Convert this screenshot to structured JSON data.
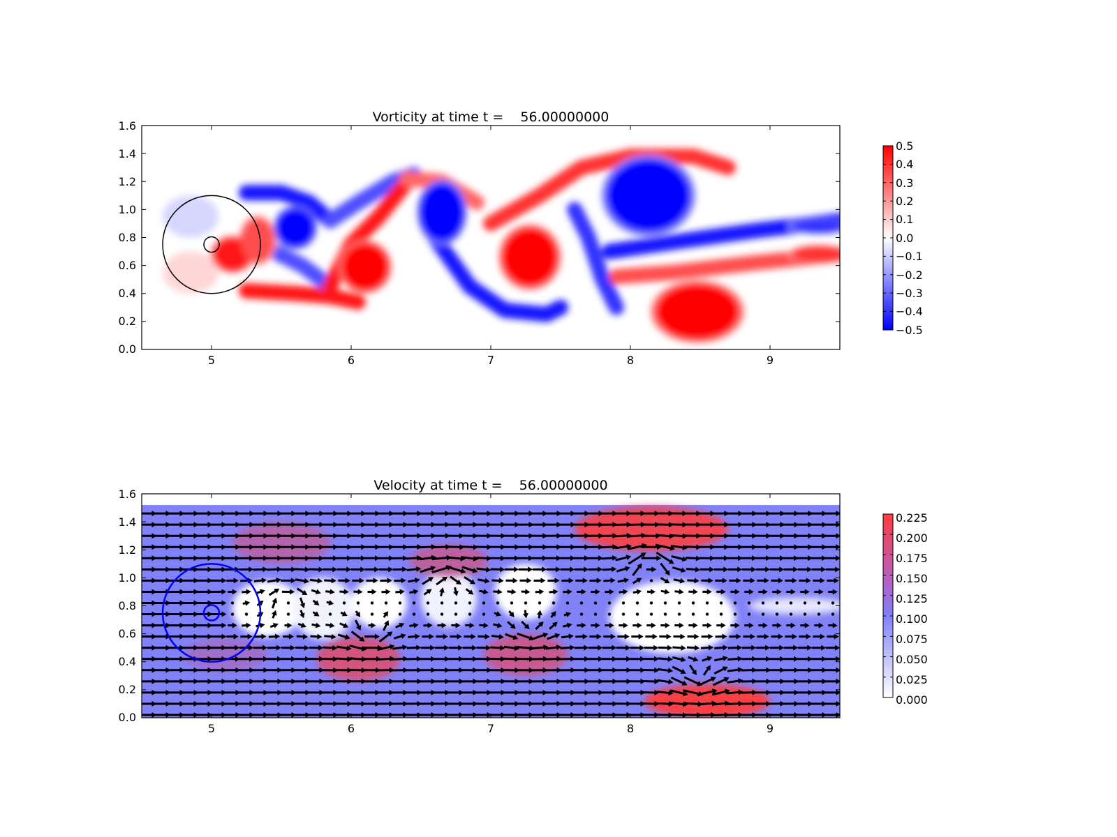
{
  "chart_data": [
    {
      "type": "heatmap",
      "title": "Vorticity at time t =    56.00000000",
      "xlabel": "",
      "ylabel": "",
      "xlim": [
        4.5,
        9.5
      ],
      "ylim": [
        0.0,
        1.6
      ],
      "xticks": [
        "5",
        "6",
        "7",
        "8",
        "9"
      ],
      "yticks": [
        "0.0",
        "0.2",
        "0.4",
        "0.6",
        "0.8",
        "1.0",
        "1.2",
        "1.4",
        "1.6"
      ],
      "colormap": "bwr",
      "colors": {
        "negative": "#0000ff",
        "zero": "#ffffff",
        "positive": "#ff0000"
      },
      "colorbar": {
        "min": -0.5,
        "max": 0.5,
        "ticks": [
          "0.5",
          "0.4",
          "0.3",
          "0.2",
          "0.1",
          "0.0",
          "−0.1",
          "−0.2",
          "−0.3",
          "−0.4",
          "−0.5"
        ]
      },
      "circles": [
        {
          "cx": 5.0,
          "cy": 0.75,
          "r": 0.35,
          "color": "#000000"
        },
        {
          "cx": 5.0,
          "cy": 0.75,
          "r": 0.055,
          "color": "#000000"
        }
      ],
      "vortices": [
        {
          "x": 5.15,
          "y": 0.68,
          "rx": 0.14,
          "ry": 0.12,
          "value": 0.45
        },
        {
          "x": 5.33,
          "y": 0.78,
          "rx": 0.12,
          "ry": 0.16,
          "value": 0.35
        },
        {
          "x": 5.6,
          "y": 0.87,
          "rx": 0.14,
          "ry": 0.14,
          "value": -0.5
        },
        {
          "x": 6.1,
          "y": 0.59,
          "rx": 0.17,
          "ry": 0.17,
          "value": 0.5
        },
        {
          "x": 6.65,
          "y": 0.98,
          "rx": 0.16,
          "ry": 0.21,
          "value": -0.5
        },
        {
          "x": 7.28,
          "y": 0.66,
          "rx": 0.2,
          "ry": 0.21,
          "value": 0.5
        },
        {
          "x": 8.13,
          "y": 1.1,
          "rx": 0.3,
          "ry": 0.26,
          "value": -0.5
        },
        {
          "x": 8.48,
          "y": 0.27,
          "rx": 0.3,
          "ry": 0.2,
          "value": 0.5
        },
        {
          "x": 9.35,
          "y": 0.88,
          "rx": 0.2,
          "ry": 0.05,
          "value": -0.4
        },
        {
          "x": 9.35,
          "y": 0.68,
          "rx": 0.2,
          "ry": 0.06,
          "value": 0.4
        }
      ],
      "filaments": [
        {
          "points": [
            [
              5.25,
              1.12
            ],
            [
              5.5,
              1.12
            ],
            [
              5.7,
              1.05
            ],
            [
              5.85,
              0.92
            ]
          ],
          "value": -0.45
        },
        {
          "points": [
            [
              5.25,
              0.42
            ],
            [
              5.6,
              0.4
            ],
            [
              5.85,
              0.38
            ],
            [
              6.05,
              0.34
            ]
          ],
          "value": 0.45
        },
        {
          "points": [
            [
              5.35,
              0.75
            ],
            [
              5.65,
              0.6
            ],
            [
              5.85,
              0.45
            ]
          ],
          "value": -0.35
        },
        {
          "points": [
            [
              5.85,
              0.92
            ],
            [
              6.05,
              1.05
            ],
            [
              6.3,
              1.2
            ],
            [
              6.45,
              1.25
            ]
          ],
          "value": -0.35
        },
        {
          "points": [
            [
              5.85,
              0.45
            ],
            [
              6.0,
              0.75
            ],
            [
              6.2,
              0.95
            ],
            [
              6.4,
              1.2
            ]
          ],
          "value": 0.45
        },
        {
          "points": [
            [
              6.6,
              0.8
            ],
            [
              6.85,
              0.45
            ],
            [
              7.1,
              0.28
            ],
            [
              7.4,
              0.25
            ],
            [
              7.5,
              0.3
            ]
          ],
          "value": -0.45
        },
        {
          "points": [
            [
              6.4,
              1.22
            ],
            [
              6.65,
              1.2
            ],
            [
              6.9,
              1.05
            ]
          ],
          "value": 0.3
        },
        {
          "points": [
            [
              7.0,
              0.9
            ],
            [
              7.35,
              1.1
            ],
            [
              7.65,
              1.3
            ],
            [
              8.0,
              1.38
            ],
            [
              8.45,
              1.38
            ],
            [
              8.7,
              1.3
            ]
          ],
          "value": 0.4
        },
        {
          "points": [
            [
              7.6,
              1.0
            ],
            [
              7.7,
              0.8
            ],
            [
              7.8,
              0.5
            ],
            [
              7.9,
              0.3
            ]
          ],
          "value": -0.4
        },
        {
          "points": [
            [
              7.9,
              0.52
            ],
            [
              8.3,
              0.55
            ],
            [
              8.9,
              0.62
            ],
            [
              9.5,
              0.68
            ]
          ],
          "value": 0.35
        },
        {
          "points": [
            [
              7.85,
              0.7
            ],
            [
              8.4,
              0.78
            ],
            [
              8.9,
              0.85
            ],
            [
              9.5,
              0.92
            ]
          ],
          "value": -0.45
        }
      ]
    },
    {
      "type": "heatmap",
      "subtype": "quiver",
      "title": "Velocity at time t =    56.00000000",
      "xlabel": "",
      "ylabel": "",
      "xlim": [
        4.5,
        9.5
      ],
      "ylim": [
        0.0,
        1.6
      ],
      "yfield": [
        0.0,
        1.52
      ],
      "xticks": [
        "5",
        "6",
        "7",
        "8",
        "9"
      ],
      "yticks": [
        "0.0",
        "0.2",
        "0.4",
        "0.6",
        "0.8",
        "1.0",
        "1.2",
        "1.4",
        "1.6"
      ],
      "colors": {
        "low": "#ffffff",
        "mid": "#8080f8",
        "high": "#ff3c3c",
        "arrow": "#000000"
      },
      "colorbar": {
        "min": 0.0,
        "max": 0.225,
        "ticks": [
          "0.225",
          "0.200",
          "0.175",
          "0.150",
          "0.125",
          "0.100",
          "0.075",
          "0.050",
          "0.025",
          "0.000"
        ]
      },
      "background_speed": 0.1,
      "circles": [
        {
          "cx": 5.0,
          "cy": 0.75,
          "r": 0.35,
          "color": "#0000ee"
        },
        {
          "cx": 5.0,
          "cy": 0.75,
          "r": 0.055,
          "color": "#0000ee"
        }
      ],
      "speed_features": [
        {
          "x": 5.4,
          "y": 0.78,
          "rx": 0.25,
          "ry": 0.2,
          "speed": 0.0
        },
        {
          "x": 5.8,
          "y": 0.78,
          "rx": 0.22,
          "ry": 0.22,
          "speed": 0.01
        },
        {
          "x": 6.2,
          "y": 0.82,
          "rx": 0.2,
          "ry": 0.18,
          "speed": 0.0
        },
        {
          "x": 6.7,
          "y": 0.85,
          "rx": 0.2,
          "ry": 0.2,
          "speed": 0.01
        },
        {
          "x": 7.25,
          "y": 0.9,
          "rx": 0.22,
          "ry": 0.2,
          "speed": 0.0
        },
        {
          "x": 8.3,
          "y": 0.72,
          "rx": 0.45,
          "ry": 0.26,
          "speed": 0.0
        },
        {
          "x": 9.2,
          "y": 0.8,
          "rx": 0.35,
          "ry": 0.06,
          "speed": 0.02
        },
        {
          "x": 5.5,
          "y": 1.25,
          "rx": 0.35,
          "ry": 0.15,
          "speed": 0.15
        },
        {
          "x": 6.05,
          "y": 0.42,
          "rx": 0.3,
          "ry": 0.16,
          "speed": 0.18
        },
        {
          "x": 6.7,
          "y": 1.12,
          "rx": 0.28,
          "ry": 0.12,
          "speed": 0.16
        },
        {
          "x": 7.25,
          "y": 0.45,
          "rx": 0.3,
          "ry": 0.15,
          "speed": 0.17
        },
        {
          "x": 8.15,
          "y": 1.35,
          "rx": 0.55,
          "ry": 0.16,
          "speed": 0.21
        },
        {
          "x": 8.55,
          "y": 0.12,
          "rx": 0.45,
          "ry": 0.12,
          "speed": 0.22
        },
        {
          "x": 5.1,
          "y": 0.45,
          "rx": 0.3,
          "ry": 0.12,
          "speed": 0.13
        }
      ],
      "vortices": [
        {
          "x": 5.55,
          "y": 0.82,
          "s": -1
        },
        {
          "x": 6.15,
          "y": 0.62,
          "s": 1
        },
        {
          "x": 6.7,
          "y": 0.98,
          "s": -1
        },
        {
          "x": 7.3,
          "y": 0.66,
          "s": 1
        },
        {
          "x": 8.15,
          "y": 1.1,
          "s": -1
        },
        {
          "x": 8.5,
          "y": 0.28,
          "s": 1
        }
      ]
    }
  ]
}
